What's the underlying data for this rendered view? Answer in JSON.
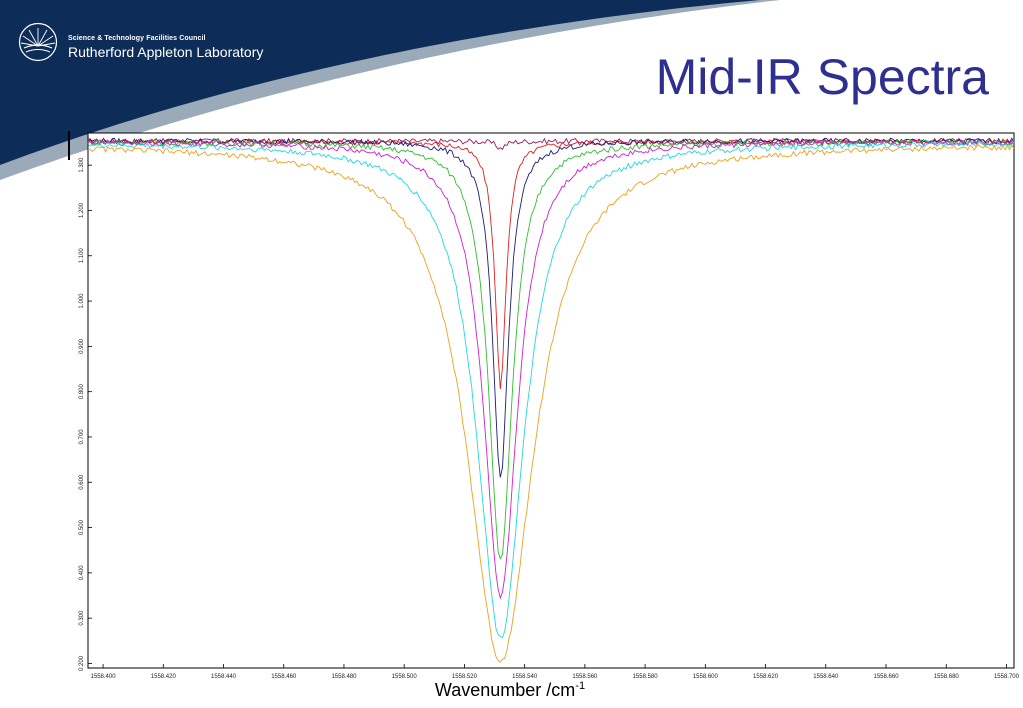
{
  "header": {
    "org_small": "Science & Technology Facilities Council",
    "org_large": "Rutherford Appleton Laboratory",
    "slide_title": "Mid-IR Spectra",
    "logo_icon": "stfc-sunburst-icon",
    "brand_color": "#0d2c57"
  },
  "chart_data": {
    "type": "line",
    "xlabel": "Wavenumber /cm",
    "xlabel_superscript": "-1",
    "xlim": [
      1558.395,
      1558.7025
    ],
    "ylim": [
      0.19,
      1.371
    ],
    "x_ticks": [
      1558.4,
      1558.42,
      1558.44,
      1558.46,
      1558.48,
      1558.5,
      1558.52,
      1558.54,
      1558.56,
      1558.58,
      1558.6,
      1558.62,
      1558.64,
      1558.66,
      1558.68,
      1558.7
    ],
    "x_tick_labels": [
      "1558.400",
      "1558.420",
      "1558.440",
      "1558.460",
      "1558.480",
      "1558.500",
      "1558.520",
      "1558.540",
      "1558.560",
      "1558.580",
      "1558.600",
      "1558.620",
      "1558.640",
      "1558.660",
      "1558.680",
      "1558.700"
    ],
    "y_ticks": [
      0.2,
      0.3,
      0.4,
      0.5,
      0.6,
      0.7,
      0.8,
      0.9,
      1.0,
      1.1,
      1.2,
      1.3
    ],
    "y_tick_labels": [
      "0.200",
      "0.300",
      "0.400",
      "0.500",
      "0.600",
      "0.700",
      "0.800",
      "0.900",
      "1.000",
      "1.100",
      "1.200",
      "1.300"
    ],
    "grid": false,
    "legend": "none",
    "line_center": 1558.532,
    "series": [
      {
        "color": "#9b1b5a",
        "baseline": 1.353,
        "min": 1.337,
        "width": 0.0018
      },
      {
        "color": "#e02020",
        "baseline": 1.352,
        "min": 0.81,
        "width": 0.0022
      },
      {
        "color": "#1c1c7a",
        "baseline": 1.354,
        "min": 0.61,
        "width": 0.0032
      },
      {
        "color": "#2fbf2f",
        "baseline": 1.351,
        "min": 0.425,
        "width": 0.0048
      },
      {
        "color": "#cc22cc",
        "baseline": 1.352,
        "min": 0.345,
        "width": 0.0068
      },
      {
        "color": "#22d8e0",
        "baseline": 1.35,
        "min": 0.255,
        "width": 0.0095
      },
      {
        "color": "#f0a020",
        "baseline": 1.347,
        "min": 0.205,
        "width": 0.0135
      }
    ]
  }
}
